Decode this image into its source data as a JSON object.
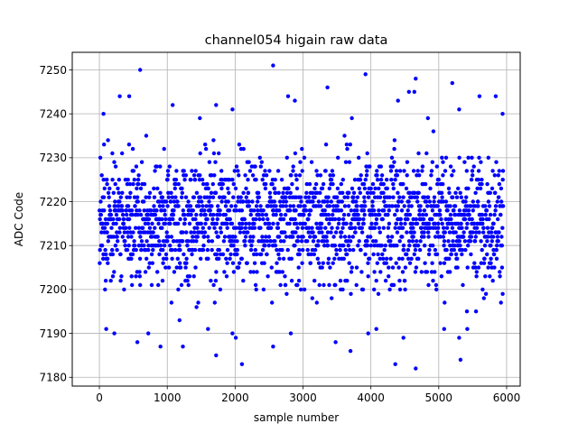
{
  "chart_data": {
    "type": "scatter",
    "title": "channel054 higain raw data",
    "xlabel": "sample number",
    "ylabel": "ADC Code",
    "xlim": [
      -400,
      6200
    ],
    "ylim": [
      7178,
      7254
    ],
    "xticks": [
      0,
      1000,
      2000,
      3000,
      4000,
      5000,
      6000
    ],
    "yticks": [
      7180,
      7190,
      7200,
      7210,
      7220,
      7230,
      7240,
      7250
    ],
    "grid": true,
    "marker_color": "#0000ff",
    "n_samples": 5950,
    "typical_range": [
      7196,
      7234
    ],
    "center": 7216,
    "outliers": [
      {
        "x": 600,
        "y": 7250
      },
      {
        "x": 2560,
        "y": 7251
      },
      {
        "x": 3920,
        "y": 7249
      },
      {
        "x": 4660,
        "y": 7248
      },
      {
        "x": 5200,
        "y": 7247
      },
      {
        "x": 3360,
        "y": 7246
      },
      {
        "x": 4560,
        "y": 7245
      },
      {
        "x": 4640,
        "y": 7245
      },
      {
        "x": 300,
        "y": 7244
      },
      {
        "x": 440,
        "y": 7244
      },
      {
        "x": 2780,
        "y": 7244
      },
      {
        "x": 5600,
        "y": 7244
      },
      {
        "x": 5840,
        "y": 7244
      },
      {
        "x": 1720,
        "y": 7242
      },
      {
        "x": 1080,
        "y": 7242
      },
      {
        "x": 2880,
        "y": 7243
      },
      {
        "x": 4400,
        "y": 7243
      },
      {
        "x": 60,
        "y": 7240
      },
      {
        "x": 1960,
        "y": 7241
      },
      {
        "x": 5300,
        "y": 7241
      },
      {
        "x": 5940,
        "y": 7240
      },
      {
        "x": 1480,
        "y": 7239
      },
      {
        "x": 3720,
        "y": 7239
      },
      {
        "x": 4840,
        "y": 7239
      },
      {
        "x": 2100,
        "y": 7183
      },
      {
        "x": 4360,
        "y": 7183
      },
      {
        "x": 4660,
        "y": 7182
      },
      {
        "x": 5320,
        "y": 7184
      },
      {
        "x": 1720,
        "y": 7185
      },
      {
        "x": 3700,
        "y": 7186
      },
      {
        "x": 900,
        "y": 7187
      },
      {
        "x": 1230,
        "y": 7187
      },
      {
        "x": 2560,
        "y": 7187
      },
      {
        "x": 560,
        "y": 7188
      },
      {
        "x": 3480,
        "y": 7188
      },
      {
        "x": 4480,
        "y": 7189
      },
      {
        "x": 5300,
        "y": 7189
      },
      {
        "x": 2010,
        "y": 7189
      },
      {
        "x": 220,
        "y": 7190
      },
      {
        "x": 2820,
        "y": 7190
      },
      {
        "x": 3960,
        "y": 7190
      },
      {
        "x": 5080,
        "y": 7191
      },
      {
        "x": 5420,
        "y": 7191
      },
      {
        "x": 100,
        "y": 7191
      },
      {
        "x": 1960,
        "y": 7190
      },
      {
        "x": 720,
        "y": 7190
      },
      {
        "x": 1600,
        "y": 7191
      },
      {
        "x": 4080,
        "y": 7191
      }
    ]
  }
}
